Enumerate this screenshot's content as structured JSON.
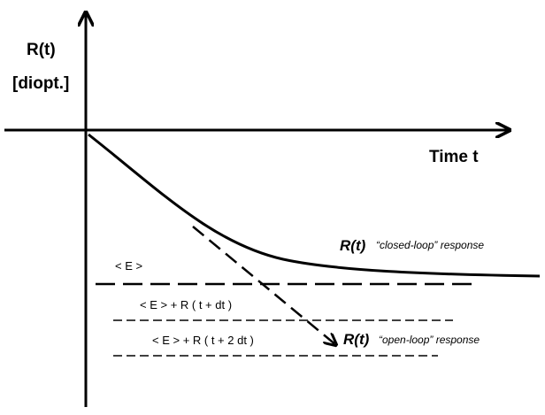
{
  "axes": {
    "y_label": "R(t)",
    "y_unit": "[diopt.]",
    "x_label": "Time t"
  },
  "curves": [
    {
      "symbol": "R(t)",
      "description": "“closed-loop” response"
    },
    {
      "symbol": "R(t)",
      "description": "“open-loop” response"
    }
  ],
  "levels": [
    "< E >",
    "< E > + R ( t + dt )",
    "< E > + R ( t + 2 dt )"
  ]
}
